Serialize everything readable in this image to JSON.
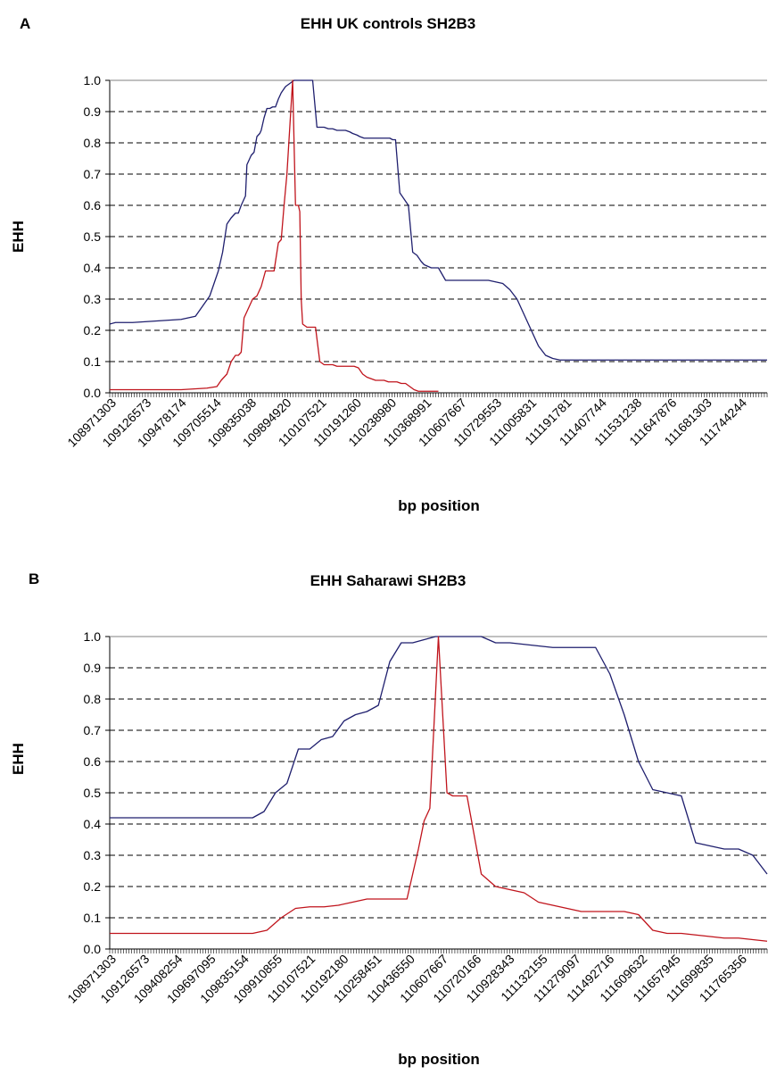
{
  "colors": {
    "blue_series": "#1f1f6e",
    "red_series": "#c0141c",
    "grid": "#000000"
  },
  "chart_data": [
    {
      "type": "line",
      "panel": "A",
      "title": "EHH UK controls SH2B3",
      "xlabel": "bp position",
      "ylabel": "EHH",
      "ylim": [
        0,
        1
      ],
      "yticks": [
        "0.0",
        "0.1",
        "0.2",
        "0.3",
        "0.4",
        "0.5",
        "0.6",
        "0.7",
        "0.8",
        "0.9",
        "1.0"
      ],
      "xtick_labels": [
        "108971303",
        "109126573",
        "109478174",
        "109705514",
        "109835038",
        "109894920",
        "110107521",
        "110191260",
        "110238980",
        "110368991",
        "110607667",
        "110729553",
        "111005831",
        "111191781",
        "111407744",
        "111531238",
        "111647876",
        "111681303",
        "111744244"
      ],
      "grid": true,
      "series": [
        {
          "color": "#1f1f6e",
          "x": [
            0,
            0.4,
            1.6,
            3.3,
            5.0,
            5.5,
            6.0,
            7.0,
            7.3,
            7.6,
            7.9,
            8.2,
            8.5,
            8.8,
            9.0,
            9.2,
            9.4,
            9.5,
            9.6,
            9.7,
            9.8,
            9.9,
            10.0,
            10.1,
            10.3,
            10.5,
            10.6,
            10.7,
            10.8,
            11.0,
            11.2,
            11.4,
            11.6,
            11.8,
            12.0,
            12.3,
            12.6,
            12.9,
            13.2,
            13.4,
            13.6,
            13.9,
            14.2,
            14.5,
            14.7,
            15.0,
            15.3,
            15.6,
            15.9,
            16.2,
            16.5,
            16.8,
            17.0,
            17.3,
            17.5,
            17.8,
            18.0,
            18.3,
            18.6,
            18.8,
            19.0,
            19.2,
            19.4,
            19.6,
            19.8,
            20.0,
            20.3,
            20.6,
            20.9,
            21.2,
            21.5,
            21.8,
            22.0,
            22.5,
            23.0,
            23.5,
            24.0,
            24.5,
            25.0,
            25.5,
            26.0,
            26.5,
            27.0,
            27.5,
            28.0,
            28.5,
            29.0,
            29.5,
            30.0,
            30.5,
            31.0,
            31.5,
            32.0,
            32.5,
            33.0,
            33.3,
            33.6,
            33.9,
            34.2,
            34.5,
            34.8,
            35.0,
            35.3,
            35.6,
            35.9,
            36.2,
            36.5,
            36.8,
            37.1,
            37.4,
            37.7,
            38.0,
            38.3,
            38.6,
            38.9,
            39.2,
            39.5,
            39.7,
            39.9,
            40.1,
            40.3,
            40.6,
            40.9,
            41.2,
            41.5,
            41.8,
            42.1,
            42.4,
            42.7,
            43.0,
            43.3,
            43.6,
            43.9,
            44.2,
            44.5,
            44.8,
            45.1,
            45.4,
            45.7,
            46.0
          ],
          "y": [
            0.22,
            0.225,
            0.225,
            0.23,
            0.235,
            0.24,
            0.245,
            0.31,
            0.35,
            0.39,
            0.45,
            0.54,
            0.56,
            0.575,
            0.575,
            0.6,
            0.62,
            0.63,
            0.73,
            0.74,
            0.75,
            0.76,
            0.765,
            0.77,
            0.82,
            0.83,
            0.84,
            0.86,
            0.88,
            0.91,
            0.91,
            0.915,
            0.915,
            0.94,
            0.96,
            0.98,
            0.99,
            1.0,
            1.0,
            1.0,
            1.0,
            1.0,
            1.0,
            0.85,
            0.85,
            0.85,
            0.845,
            0.845,
            0.84,
            0.84,
            0.84,
            0.835,
            0.83,
            0.825,
            0.82,
            0.815,
            0.815,
            0.815,
            0.815,
            0.815,
            0.815,
            0.815,
            0.815,
            0.815,
            0.81,
            0.81,
            0.64,
            0.62,
            0.6,
            0.45,
            0.44,
            0.42,
            0.41,
            0.4,
            0.4,
            0.36,
            0.36,
            0.36,
            0.36,
            0.36,
            0.36,
            0.36,
            0.355,
            0.35,
            0.33,
            0.3,
            0.25,
            0.2,
            0.15,
            0.12,
            0.11,
            0.105,
            0.105,
            0.105,
            0.105,
            0.105,
            0.105,
            0.105,
            0.105,
            0.105,
            0.105,
            0.105,
            0.105,
            0.105,
            0.105,
            0.105,
            0.105,
            0.105,
            0.105,
            0.105,
            0.105,
            0.105,
            0.105,
            0.105,
            0.105,
            0.105,
            0.105,
            0.105,
            0.105,
            0.105,
            0.105,
            0.105,
            0.105,
            0.105,
            0.105,
            0.105,
            0.105,
            0.105,
            0.105,
            0.105,
            0.105,
            0.105,
            0.105,
            0.105,
            0.105,
            0.105,
            0.105,
            0.105,
            0.105,
            0.105
          ]
        },
        {
          "color": "#c0141c",
          "x": [
            0,
            5.0,
            6.8,
            7.5,
            7.8,
            8.2,
            8.5,
            8.8,
            9.0,
            9.2,
            9.4,
            9.6,
            9.8,
            10.0,
            10.3,
            10.6,
            10.9,
            11.2,
            11.5,
            11.8,
            12.0,
            12.2,
            12.4,
            12.6,
            12.8,
            13.0,
            13.1,
            13.2,
            13.3,
            13.4,
            13.5,
            13.8,
            14.1,
            14.4,
            14.7,
            15.0,
            15.3,
            15.6,
            15.9,
            16.2,
            16.5,
            16.8,
            17.1,
            17.4,
            17.7,
            18.0,
            18.3,
            18.6,
            18.9,
            19.2,
            19.5,
            19.8,
            20.1,
            20.4,
            20.7,
            21.0,
            21.3,
            21.6,
            21.9,
            22.2,
            22.5,
            22.8,
            23.0
          ],
          "y": [
            0.01,
            0.01,
            0.015,
            0.02,
            0.04,
            0.06,
            0.1,
            0.12,
            0.12,
            0.13,
            0.24,
            0.26,
            0.28,
            0.3,
            0.31,
            0.34,
            0.39,
            0.39,
            0.39,
            0.48,
            0.49,
            0.6,
            0.7,
            0.85,
            1.0,
            0.6,
            0.6,
            0.6,
            0.58,
            0.3,
            0.22,
            0.21,
            0.21,
            0.21,
            0.1,
            0.09,
            0.09,
            0.09,
            0.085,
            0.085,
            0.085,
            0.085,
            0.085,
            0.08,
            0.06,
            0.05,
            0.045,
            0.04,
            0.04,
            0.04,
            0.035,
            0.035,
            0.035,
            0.03,
            0.03,
            0.02,
            0.01,
            0.005,
            0.005,
            0.005,
            0.005,
            0.005,
            0.005
          ]
        }
      ]
    },
    {
      "type": "line",
      "panel": "B",
      "title": "EHH Saharawi SH2B3",
      "xlabel": "bp position",
      "ylabel": "EHH",
      "ylim": [
        0,
        1
      ],
      "yticks": [
        "0.0",
        "0.1",
        "0.2",
        "0.3",
        "0.4",
        "0.5",
        "0.6",
        "0.7",
        "0.8",
        "0.9",
        "1.0"
      ],
      "xtick_labels": [
        "108971303",
        "109126573",
        "109408254",
        "109697095",
        "109835154",
        "109910855",
        "110107521",
        "110192180",
        "110258451",
        "110436550",
        "110607667",
        "110720166",
        "110928343",
        "111132155",
        "111279097",
        "111492716",
        "111609632",
        "111657945",
        "111699835",
        "111765356"
      ],
      "grid": true,
      "series": [
        {
          "color": "#1f1f6e",
          "x": [
            0,
            5.0,
            5.4,
            5.8,
            6.2,
            6.6,
            7.0,
            7.4,
            7.8,
            8.2,
            8.6,
            9.0,
            9.4,
            9.8,
            10.2,
            10.6,
            11.0,
            11.4,
            11.8,
            12.2,
            12.6,
            13.0,
            13.5,
            14.0,
            14.5,
            15.0,
            15.5,
            16.0,
            16.5,
            17.0,
            17.5,
            18.0,
            18.5,
            19.0,
            19.5,
            20.0,
            20.5,
            21.0,
            21.5,
            22.0,
            22.5,
            23.0
          ],
          "y": [
            0.42,
            0.42,
            0.44,
            0.5,
            0.53,
            0.64,
            0.64,
            0.67,
            0.68,
            0.73,
            0.75,
            0.76,
            0.78,
            0.92,
            0.98,
            0.98,
            0.99,
            1.0,
            1.0,
            1.0,
            1.0,
            1.0,
            0.98,
            0.98,
            0.975,
            0.97,
            0.965,
            0.965,
            0.965,
            0.965,
            0.88,
            0.75,
            0.6,
            0.51,
            0.5,
            0.49,
            0.34,
            0.33,
            0.32,
            0.32,
            0.3,
            0.24
          ]
        },
        {
          "color": "#c0141c",
          "x": [
            0,
            5.0,
            5.5,
            6.0,
            6.5,
            7.0,
            7.5,
            8.0,
            8.5,
            9.0,
            9.5,
            10.0,
            10.4,
            10.8,
            11.0,
            11.2,
            11.5,
            11.8,
            12.0,
            12.5,
            13.0,
            13.5,
            14.0,
            14.5,
            15.0,
            15.5,
            16.0,
            16.5,
            17.0,
            17.5,
            18.0,
            18.5,
            19.0,
            19.5,
            20.0,
            20.5,
            21.0,
            21.5,
            22.0,
            22.5,
            23.0
          ],
          "y": [
            0.05,
            0.05,
            0.06,
            0.1,
            0.13,
            0.135,
            0.135,
            0.14,
            0.15,
            0.16,
            0.16,
            0.16,
            0.16,
            0.32,
            0.41,
            0.45,
            1.0,
            0.5,
            0.49,
            0.49,
            0.24,
            0.2,
            0.19,
            0.18,
            0.15,
            0.14,
            0.13,
            0.12,
            0.12,
            0.12,
            0.12,
            0.11,
            0.06,
            0.05,
            0.05,
            0.045,
            0.04,
            0.035,
            0.035,
            0.03,
            0.025
          ]
        }
      ]
    }
  ]
}
